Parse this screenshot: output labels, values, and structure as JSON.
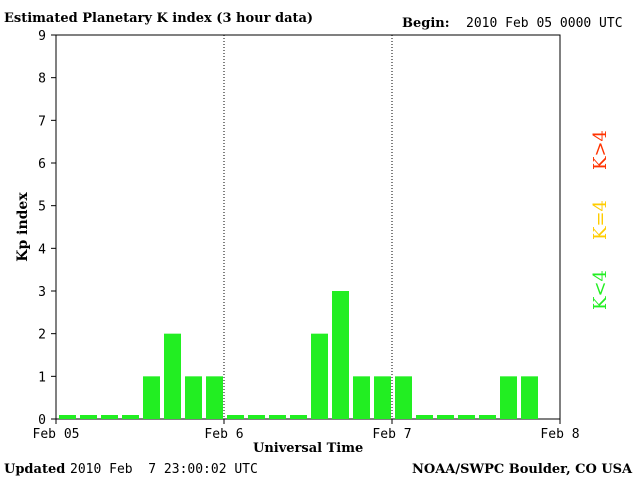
{
  "header": {
    "title": "Estimated Planetary K index (3 hour data)",
    "begin_label": "Begin:",
    "begin_value": "2010 Feb 05 0000 UTC"
  },
  "footer": {
    "updated_label": "Updated",
    "updated_value": "2010 Feb  7 23:00:02 UTC",
    "source": "NOAA/SWPC Boulder, CO USA"
  },
  "legend": {
    "above": {
      "text": "K>4",
      "color": "#ff3300"
    },
    "equal": {
      "text": "K=4",
      "color": "#ffcc00"
    },
    "below": {
      "text": "K<4",
      "color": "#22ee22"
    }
  },
  "chart_data": {
    "type": "bar",
    "ylabel": "Kp index",
    "xlabel": "Universal Time",
    "ylim": [
      0,
      9
    ],
    "yticks": [
      "0",
      "1",
      "2",
      "3",
      "4",
      "5",
      "6",
      "7",
      "8",
      "9"
    ],
    "xticks": [
      "Feb 05",
      "Feb 6",
      "Feb 7",
      "Feb 8"
    ],
    "day_separators": [
      "Feb 6",
      "Feb 7"
    ],
    "values": [
      0,
      0,
      0,
      0,
      1,
      2,
      1,
      1,
      0,
      0,
      0,
      0,
      2,
      3,
      1,
      1,
      1,
      0,
      0,
      0,
      0,
      1,
      1
    ],
    "bar_color": "#22ee22",
    "grid": false
  }
}
